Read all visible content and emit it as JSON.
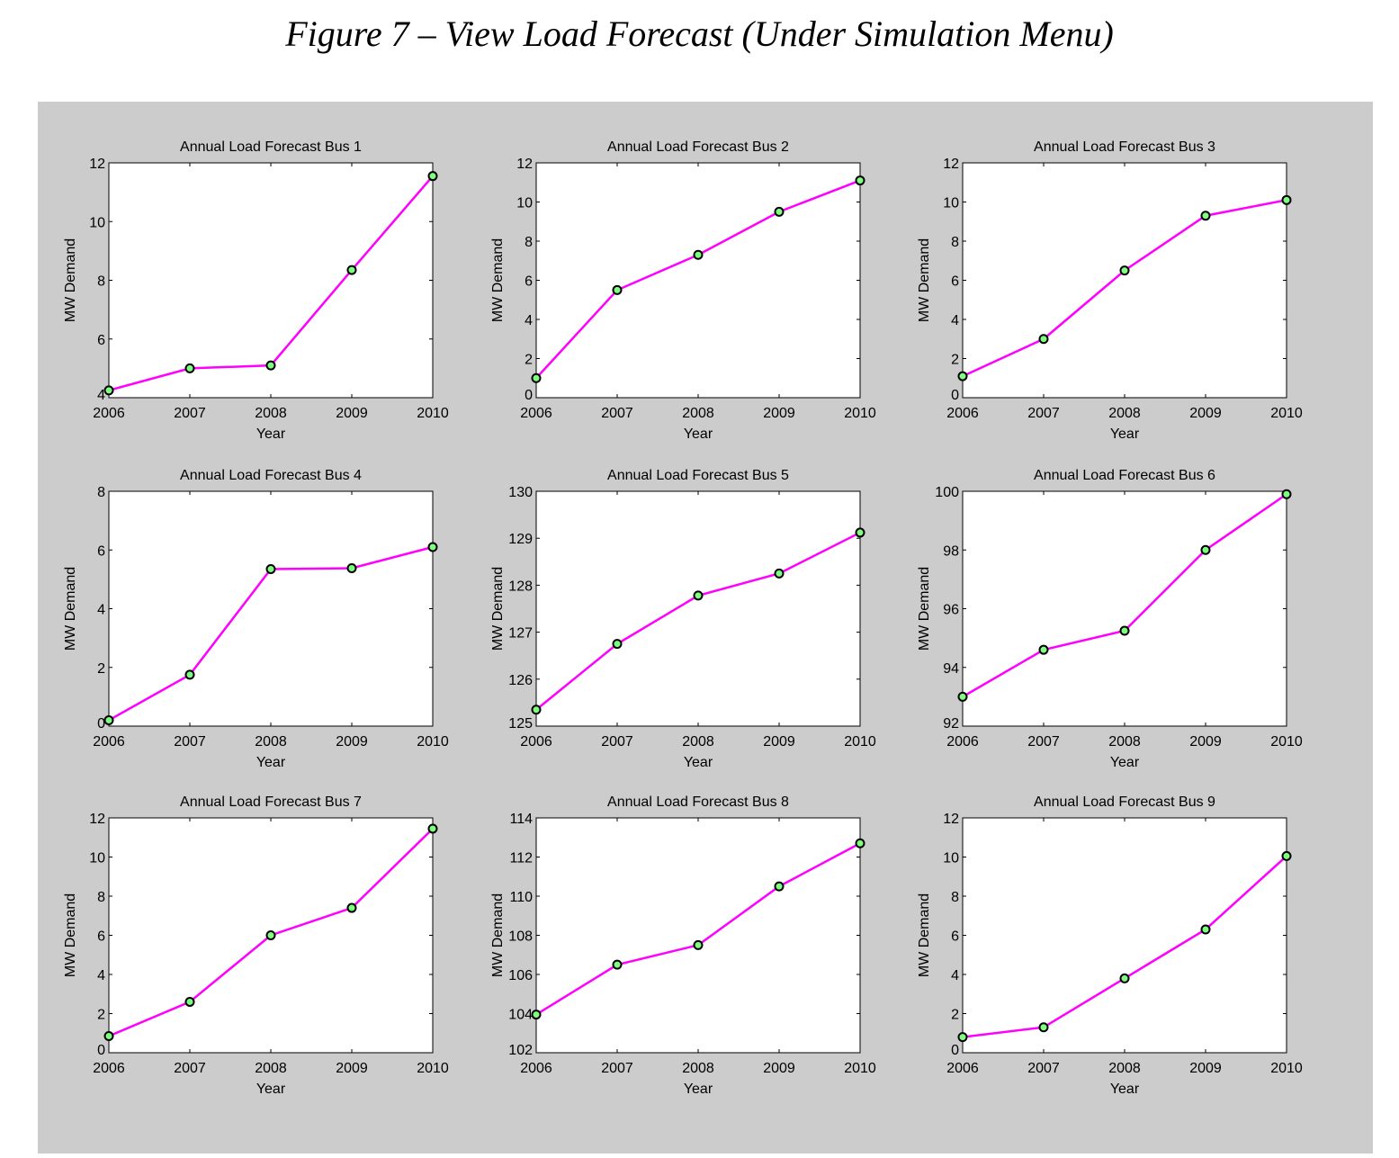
{
  "figure_title": "Figure 7 – View Load Forecast (Under Simulation Menu)",
  "colors": {
    "background": "#cccccc",
    "line": "#ff00ff",
    "marker_fill": "#7fff7f",
    "marker_edge": "#000000"
  },
  "chart_data": [
    {
      "type": "line",
      "title": "Annual Load Forecast Bus 1",
      "xlabel": "Year",
      "ylabel": "MW Demand",
      "x": [
        2006,
        2007,
        2008,
        2009,
        2010
      ],
      "y": [
        4.25,
        5.0,
        5.1,
        8.35,
        11.55
      ],
      "xlim": [
        2006,
        2010
      ],
      "ylim": [
        4,
        12
      ],
      "yticks": [
        4,
        6,
        8,
        10,
        12
      ],
      "xticks": [
        2006,
        2007,
        2008,
        2009,
        2010
      ]
    },
    {
      "type": "line",
      "title": "Annual Load Forecast Bus 2",
      "xlabel": "Year",
      "ylabel": "MW Demand",
      "x": [
        2006,
        2007,
        2008,
        2009,
        2010
      ],
      "y": [
        1.0,
        5.5,
        7.3,
        9.5,
        11.1
      ],
      "xlim": [
        2006,
        2010
      ],
      "ylim": [
        0,
        12
      ],
      "yticks": [
        0,
        2,
        4,
        6,
        8,
        10,
        12
      ],
      "xticks": [
        2006,
        2007,
        2008,
        2009,
        2010
      ]
    },
    {
      "type": "line",
      "title": "Annual Load Forecast Bus 3",
      "xlabel": "Year",
      "ylabel": "MW Demand",
      "x": [
        2006,
        2007,
        2008,
        2009,
        2010
      ],
      "y": [
        1.1,
        3.0,
        6.5,
        9.3,
        10.1
      ],
      "xlim": [
        2006,
        2010
      ],
      "ylim": [
        0,
        12
      ],
      "yticks": [
        0,
        2,
        4,
        6,
        8,
        10,
        12
      ],
      "xticks": [
        2006,
        2007,
        2008,
        2009,
        2010
      ]
    },
    {
      "type": "line",
      "title": "Annual Load Forecast Bus 4",
      "xlabel": "Year",
      "ylabel": "MW Demand",
      "x": [
        2006,
        2007,
        2008,
        2009,
        2010
      ],
      "y": [
        0.2,
        1.75,
        5.35,
        5.38,
        6.1
      ],
      "xlim": [
        2006,
        2010
      ],
      "ylim": [
        0,
        8
      ],
      "yticks": [
        0,
        2,
        4,
        6,
        8
      ],
      "xticks": [
        2006,
        2007,
        2008,
        2009,
        2010
      ]
    },
    {
      "type": "line",
      "title": "Annual Load Forecast Bus 5",
      "xlabel": "Year",
      "ylabel": "MW Demand",
      "x": [
        2006,
        2007,
        2008,
        2009,
        2010
      ],
      "y": [
        125.35,
        126.75,
        127.78,
        128.25,
        129.12
      ],
      "xlim": [
        2006,
        2010
      ],
      "ylim": [
        125,
        130
      ],
      "yticks": [
        125,
        126,
        127,
        128,
        129,
        130
      ],
      "xticks": [
        2006,
        2007,
        2008,
        2009,
        2010
      ]
    },
    {
      "type": "line",
      "title": "Annual Load Forecast Bus 6",
      "xlabel": "Year",
      "ylabel": "MW Demand",
      "x": [
        2006,
        2007,
        2008,
        2009,
        2010
      ],
      "y": [
        93.0,
        94.6,
        95.25,
        98.0,
        99.9
      ],
      "xlim": [
        2006,
        2010
      ],
      "ylim": [
        92,
        100
      ],
      "yticks": [
        92,
        94,
        96,
        98,
        100
      ],
      "xticks": [
        2006,
        2007,
        2008,
        2009,
        2010
      ]
    },
    {
      "type": "line",
      "title": "Annual Load Forecast Bus 7",
      "xlabel": "Year",
      "ylabel": "MW Demand",
      "x": [
        2006,
        2007,
        2008,
        2009,
        2010
      ],
      "y": [
        0.85,
        2.6,
        6.0,
        7.4,
        11.45
      ],
      "xlim": [
        2006,
        2010
      ],
      "ylim": [
        0,
        12
      ],
      "yticks": [
        0,
        2,
        4,
        6,
        8,
        10,
        12
      ],
      "xticks": [
        2006,
        2007,
        2008,
        2009,
        2010
      ]
    },
    {
      "type": "line",
      "title": "Annual Load Forecast Bus 8",
      "xlabel": "Year",
      "ylabel": "MW Demand",
      "x": [
        2006,
        2007,
        2008,
        2009,
        2010
      ],
      "y": [
        103.95,
        106.5,
        107.5,
        110.5,
        112.7
      ],
      "xlim": [
        2006,
        2010
      ],
      "ylim": [
        102,
        114
      ],
      "yticks": [
        102,
        104,
        106,
        108,
        110,
        112,
        114
      ],
      "xticks": [
        2006,
        2007,
        2008,
        2009,
        2010
      ]
    },
    {
      "type": "line",
      "title": "Annual Load Forecast Bus 9",
      "xlabel": "Year",
      "ylabel": "MW Demand",
      "x": [
        2006,
        2007,
        2008,
        2009,
        2010
      ],
      "y": [
        0.8,
        1.3,
        3.8,
        6.3,
        10.05
      ],
      "xlim": [
        2006,
        2010
      ],
      "ylim": [
        0,
        12
      ],
      "yticks": [
        0,
        2,
        4,
        6,
        8,
        10,
        12
      ],
      "xticks": [
        2006,
        2007,
        2008,
        2009,
        2010
      ]
    }
  ]
}
